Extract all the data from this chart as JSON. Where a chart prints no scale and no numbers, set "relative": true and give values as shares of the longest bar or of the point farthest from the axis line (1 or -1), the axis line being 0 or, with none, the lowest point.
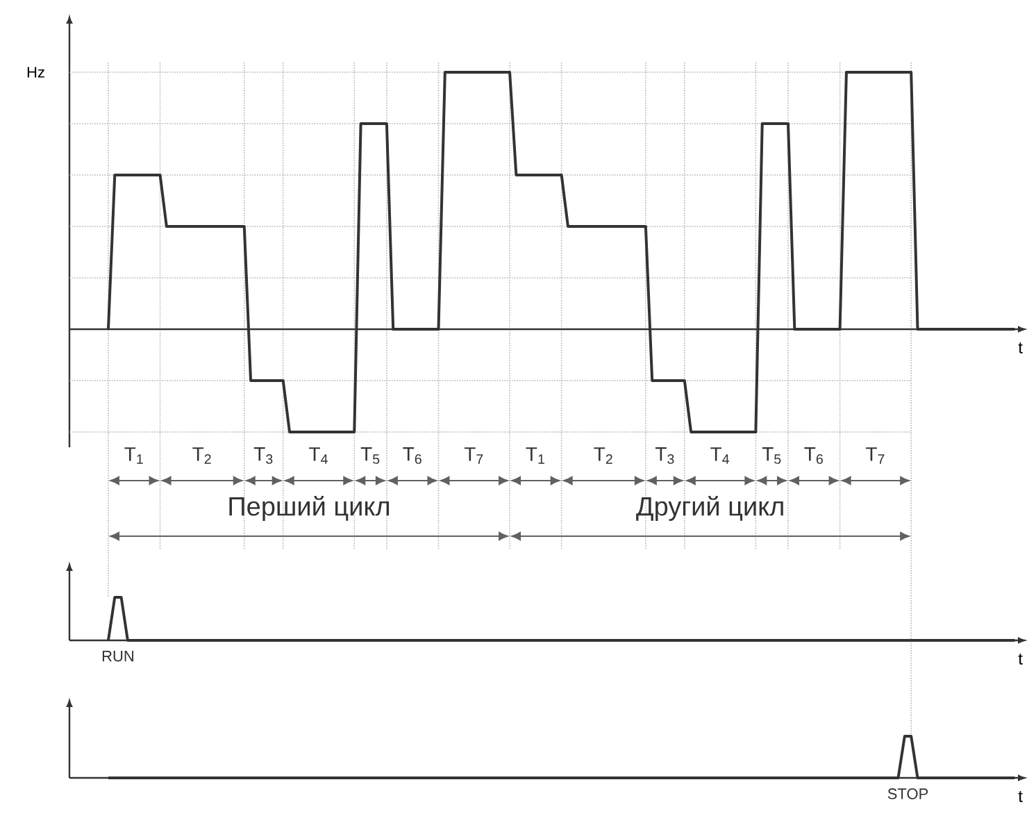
{
  "chart_data": [
    {
      "type": "line",
      "relative": true,
      "xlabel": "t",
      "ylabel": "Hz",
      "grid": true,
      "categories": [
        null,
        null,
        null,
        null,
        null,
        null,
        null,
        null,
        null,
        null,
        null,
        null,
        null,
        null,
        null,
        null,
        null,
        null,
        null,
        null,
        null,
        null,
        null,
        null,
        null,
        null,
        null,
        null,
        null,
        null,
        null,
        null,
        null,
        null,
        null,
        null,
        null,
        null,
        null,
        null,
        null,
        null,
        null,
        null,
        null,
        null,
        null,
        null,
        null,
        null,
        null,
        null,
        null,
        null,
        null,
        null,
        null,
        null,
        null,
        null,
        null,
        null,
        null,
        null,
        null,
        null,
        null,
        null,
        null,
        null,
        null,
        null,
        null,
        null,
        null,
        null,
        null,
        null,
        null,
        null,
        null,
        null,
        null,
        null,
        null,
        null,
        null,
        null,
        null,
        null,
        null,
        null,
        null,
        null,
        null,
        null,
        null,
        null,
        null,
        null,
        null,
        null,
        null,
        null,
        null,
        null,
        null,
        null,
        null,
        null,
        null,
        null,
        null,
        null,
        null,
        null,
        null,
        null,
        null,
        null,
        null,
        null,
        null,
        null,
        null,
        null,
        null,
        null,
        null,
        null,
        null,
        null,
        null,
        null,
        null,
        null,
        null,
        null,
        null,
        null,
        null
      ],
      "series": [
        {
          "color": "#333333",
          "values": [
            0,
            0.6,
            0.6,
            0.6,
            0.6,
            0.6,
            0.6,
            0.6,
            0.6,
            0.4,
            0.4,
            0.4,
            0.4,
            0.4,
            0.4,
            0.4,
            0.4,
            0.4,
            0.4,
            0.4,
            0.4,
            0.4,
            -0.2,
            -0.2,
            -0.2,
            -0.2,
            -0.2,
            -0.2,
            -0.4,
            -0.4,
            -0.4,
            -0.4,
            -0.4,
            -0.4,
            -0.4,
            -0.4,
            -0.4,
            -0.4,
            -0.4,
            0.8,
            0.8,
            0.8,
            0.8,
            0.8,
            0,
            0,
            0,
            0,
            0,
            0,
            0,
            0,
            1,
            1,
            1,
            1,
            1,
            1,
            1,
            1,
            1,
            1,
            1,
            0.6,
            0.6,
            0.6,
            0.6,
            0.6,
            0.6,
            0.6,
            0.6,
            0.4,
            0.4,
            0.4,
            0.4,
            0.4,
            0.4,
            0.4,
            0.4,
            0.4,
            0.4,
            0.4,
            0.4,
            0.4,
            -0.2,
            -0.2,
            -0.2,
            -0.2,
            -0.2,
            -0.2,
            -0.4,
            -0.4,
            -0.4,
            -0.4,
            -0.4,
            -0.4,
            -0.4,
            -0.4,
            -0.4,
            -0.4,
            -0.4,
            0.8,
            0.8,
            0.8,
            0.8,
            0.8,
            0,
            0,
            0,
            0,
            0,
            0,
            0,
            0,
            1,
            1,
            1,
            1,
            1,
            1,
            1,
            1,
            1,
            1,
            1,
            0,
            0,
            0,
            0,
            0,
            0,
            0,
            0,
            0,
            0,
            0,
            0,
            0,
            0,
            0,
            0
          ]
        }
      ],
      "annotations": [
        "T$_{1}$",
        "T$_{2}$",
        "T$_{3}$",
        "T$_{4}$",
        "T$_{5}$",
        "T$_{6}$",
        "T$_{7}$",
        "T$_{1}$",
        "T$_{2}$",
        "T$_{3}$",
        "T$_{4}$",
        "T$_{5}$",
        "T$_{6}$",
        "T$_{7}$",
        "Перший цикл",
        "Другий цикл"
      ]
    },
    {
      "type": "line",
      "relative": true,
      "xlabel": "t",
      "categories": [
        null,
        null,
        null,
        null,
        null,
        null,
        null,
        null,
        null,
        null,
        null,
        null,
        null,
        null,
        null,
        null,
        null,
        null,
        null,
        null,
        null,
        null,
        null,
        null,
        null,
        null,
        null,
        null,
        null,
        null,
        null,
        null,
        null,
        null,
        null,
        null,
        null,
        null,
        null,
        null,
        null,
        null,
        null,
        null,
        null,
        null,
        null,
        null,
        null,
        null,
        null,
        null,
        null,
        null,
        null,
        null,
        null,
        null,
        null,
        null,
        null,
        null,
        null,
        null,
        null,
        null,
        null,
        null,
        null,
        null,
        null,
        null,
        null,
        null,
        null,
        null,
        null,
        null,
        null,
        null,
        null,
        null,
        null,
        null,
        null,
        null,
        null,
        null,
        null,
        null,
        null,
        null,
        null,
        null,
        null,
        null,
        null,
        null,
        null,
        null,
        null,
        null,
        null,
        null,
        null,
        null,
        null,
        null,
        null,
        null,
        null,
        null,
        null,
        null,
        null,
        null,
        null,
        null,
        null,
        null,
        null,
        null,
        null,
        null,
        null,
        null,
        null,
        null,
        null,
        null,
        null,
        null,
        null,
        null,
        null,
        null,
        null,
        null,
        null,
        null,
        null
      ],
      "series": [
        {
          "color": "#333333",
          "values": [
            0,
            1,
            1,
            0,
            0,
            0,
            0,
            0,
            0,
            0,
            0,
            0,
            0,
            0,
            0,
            0,
            0,
            0,
            0,
            0,
            0,
            0,
            0,
            0,
            0,
            0,
            0,
            0,
            0,
            0,
            0,
            0,
            0,
            0,
            0,
            0,
            0,
            0,
            0,
            0,
            0,
            0,
            0,
            0,
            0,
            0,
            0,
            0,
            0,
            0,
            0,
            0,
            0,
            0,
            0,
            0,
            0,
            0,
            0,
            0,
            0,
            0,
            0,
            0,
            0,
            0,
            0,
            0,
            0,
            0,
            0,
            0,
            0,
            0,
            0,
            0,
            0,
            0,
            0,
            0,
            0,
            0,
            0,
            0,
            0,
            0,
            0,
            0,
            0,
            0,
            0,
            0,
            0,
            0,
            0,
            0,
            0,
            0,
            0,
            0,
            0,
            0,
            0,
            0,
            0,
            0,
            0,
            0,
            0,
            0,
            0,
            0,
            0,
            0,
            0,
            0,
            0,
            0,
            0,
            0,
            0,
            0,
            0,
            0,
            0,
            0,
            0,
            0,
            0,
            0,
            0,
            0,
            0,
            0,
            0,
            0,
            0,
            0,
            0,
            0,
            0
          ]
        }
      ],
      "annotations": [
        "RUN"
      ]
    },
    {
      "type": "line",
      "relative": true,
      "xlabel": "t",
      "categories": [
        null,
        null,
        null,
        null,
        null,
        null,
        null,
        null,
        null,
        null,
        null,
        null,
        null,
        null,
        null,
        null,
        null,
        null,
        null,
        null,
        null,
        null,
        null,
        null,
        null,
        null,
        null,
        null,
        null,
        null,
        null,
        null,
        null,
        null,
        null,
        null,
        null,
        null,
        null,
        null,
        null,
        null,
        null,
        null,
        null,
        null,
        null,
        null,
        null,
        null,
        null,
        null,
        null,
        null,
        null,
        null,
        null,
        null,
        null,
        null,
        null,
        null,
        null,
        null,
        null,
        null,
        null,
        null,
        null,
        null,
        null,
        null,
        null,
        null,
        null,
        null,
        null,
        null,
        null,
        null,
        null,
        null,
        null,
        null,
        null,
        null,
        null,
        null,
        null,
        null,
        null,
        null,
        null,
        null,
        null,
        null,
        null,
        null,
        null,
        null,
        null,
        null,
        null,
        null,
        null,
        null,
        null,
        null,
        null,
        null,
        null,
        null,
        null,
        null,
        null,
        null,
        null,
        null,
        null,
        null,
        null,
        null,
        null,
        null,
        null,
        null,
        null,
        null,
        null,
        null,
        null,
        null,
        null,
        null,
        null,
        null,
        null,
        null,
        null,
        null,
        null
      ],
      "series": [
        {
          "color": "#333333",
          "values": [
            0,
            0,
            0,
            0,
            0,
            0,
            0,
            0,
            0,
            0,
            0,
            0,
            0,
            0,
            0,
            0,
            0,
            0,
            0,
            0,
            0,
            0,
            0,
            0,
            0,
            0,
            0,
            0,
            0,
            0,
            0,
            0,
            0,
            0,
            0,
            0,
            0,
            0,
            0,
            0,
            0,
            0,
            0,
            0,
            0,
            0,
            0,
            0,
            0,
            0,
            0,
            0,
            0,
            0,
            0,
            0,
            0,
            0,
            0,
            0,
            0,
            0,
            0,
            0,
            0,
            0,
            0,
            0,
            0,
            0,
            0,
            0,
            0,
            0,
            0,
            0,
            0,
            0,
            0,
            0,
            0,
            0,
            0,
            0,
            0,
            0,
            0,
            0,
            0,
            0,
            0,
            0,
            0,
            0,
            0,
            0,
            0,
            0,
            0,
            0,
            0,
            0,
            0,
            0,
            0,
            0,
            0,
            0,
            0,
            0,
            0,
            0,
            0,
            0,
            0,
            0,
            0,
            0,
            0,
            0,
            0,
            0,
            0,
            1,
            1,
            0,
            0,
            0,
            0,
            0,
            0,
            0,
            0,
            0,
            0,
            0,
            0,
            0,
            0,
            0,
            0
          ]
        }
      ],
      "annotations": [
        "STOP"
      ]
    }
  ]
}
